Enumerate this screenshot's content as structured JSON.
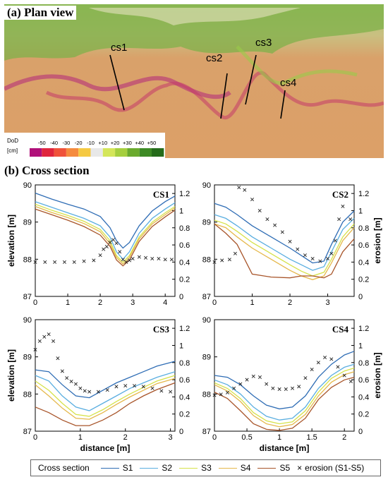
{
  "plan_view": {
    "title": "(a) Plan view",
    "section_labels": [
      "cs1",
      "cs2",
      "cs3",
      "cs4"
    ],
    "scale": {
      "label_top": "DoD",
      "label_unit": "[cm]",
      "ticks": [
        "-50",
        "-40",
        "-30",
        "-20",
        "-10",
        "+10",
        "+20",
        "+30",
        "+40",
        "+50"
      ],
      "colors": [
        "#b0107a",
        "#e0253d",
        "#f0523a",
        "#f58b3e",
        "#f5c942",
        "#e8e8e8",
        "#d4e65a",
        "#a5cf3e",
        "#6aaa2e",
        "#3d8a24",
        "#256b1a"
      ]
    }
  },
  "cross_section_title": "(b) Cross section",
  "legend": {
    "title": "Cross section",
    "items": [
      {
        "label": "S1",
        "color": "#2f6db5"
      },
      {
        "label": "S2",
        "color": "#5aaee0"
      },
      {
        "label": "S3",
        "color": "#d6e24a"
      },
      {
        "label": "S4",
        "color": "#e5b84b"
      },
      {
        "label": "S5",
        "color": "#a8552a"
      }
    ],
    "erosion_label": "erosion (S1-S5)"
  },
  "chart_data": [
    {
      "type": "line",
      "title": "CS1",
      "xlabel": "",
      "ylabel": "elevation [m]",
      "y2label": "",
      "xlim": [
        0,
        4.3
      ],
      "ylim": [
        87,
        90
      ],
      "y2lim": [
        0,
        1.3
      ],
      "xticks": [
        "0",
        "1",
        "2",
        "3",
        "4"
      ],
      "yticks": [
        "87",
        "88",
        "89",
        "90"
      ],
      "y2ticks": [
        "0",
        "0.2",
        "0.4",
        "0.6",
        "0.8",
        "1",
        "1.2"
      ],
      "x": [
        0,
        0.5,
        1,
        1.5,
        2,
        2.3,
        2.5,
        2.7,
        2.9,
        3.2,
        3.6,
        4.0,
        4.3
      ],
      "series": [
        {
          "name": "S1",
          "values": [
            89.78,
            89.62,
            89.48,
            89.35,
            89.15,
            88.85,
            88.5,
            88.3,
            88.45,
            88.9,
            89.3,
            89.55,
            89.7
          ]
        },
        {
          "name": "S2",
          "values": [
            89.55,
            89.4,
            89.25,
            89.1,
            88.9,
            88.6,
            88.2,
            88.0,
            88.2,
            88.7,
            89.1,
            89.35,
            89.52
          ]
        },
        {
          "name": "S3",
          "values": [
            89.48,
            89.32,
            89.18,
            89.02,
            88.8,
            88.5,
            88.1,
            87.92,
            88.1,
            88.6,
            89.0,
            89.25,
            89.42
          ]
        },
        {
          "name": "S4",
          "values": [
            89.42,
            89.26,
            89.12,
            88.96,
            88.74,
            88.42,
            88.05,
            87.87,
            88.05,
            88.55,
            88.95,
            89.2,
            89.38
          ]
        },
        {
          "name": "S5",
          "values": [
            89.35,
            89.2,
            89.05,
            88.88,
            88.65,
            88.35,
            87.98,
            87.82,
            87.98,
            88.48,
            88.88,
            89.14,
            89.32
          ]
        }
      ],
      "erosion": {
        "x": [
          0,
          0.3,
          0.6,
          0.9,
          1.2,
          1.5,
          1.8,
          2.0,
          2.1,
          2.2,
          2.3,
          2.4,
          2.5,
          2.6,
          2.7,
          2.8,
          2.9,
          3.0,
          3.2,
          3.4,
          3.6,
          3.8,
          4.0,
          4.2
        ],
        "values": [
          0.4,
          0.4,
          0.4,
          0.4,
          0.4,
          0.41,
          0.42,
          0.48,
          0.55,
          0.58,
          0.63,
          0.66,
          0.62,
          0.52,
          0.43,
          0.4,
          0.42,
          0.44,
          0.46,
          0.45,
          0.44,
          0.44,
          0.43,
          0.43
        ]
      }
    },
    {
      "type": "line",
      "title": "CS2",
      "xlabel": "",
      "ylabel": "",
      "y2label": "erosion [m]",
      "xlim": [
        0,
        3.7
      ],
      "ylim": [
        87,
        90
      ],
      "y2lim": [
        0,
        1.3
      ],
      "xticks": [
        "0",
        "1",
        "2",
        "3"
      ],
      "yticks": [
        "87",
        "88",
        "89",
        "90"
      ],
      "y2ticks": [
        "0",
        "0.2",
        "0.4",
        "0.6",
        "0.8",
        "1",
        "1.2"
      ],
      "x": [
        0,
        0.3,
        0.6,
        1.0,
        1.5,
        2.0,
        2.3,
        2.6,
        2.9,
        3.1,
        3.4,
        3.7
      ],
      "series": [
        {
          "name": "S1",
          "values": [
            89.5,
            89.4,
            89.2,
            88.9,
            88.6,
            88.3,
            88.1,
            87.9,
            87.95,
            88.4,
            89.0,
            89.3
          ]
        },
        {
          "name": "S2",
          "values": [
            89.2,
            89.1,
            88.9,
            88.6,
            88.3,
            88.0,
            87.85,
            87.7,
            87.8,
            88.2,
            88.8,
            89.1
          ]
        },
        {
          "name": "S3",
          "values": [
            89.05,
            88.95,
            88.75,
            88.45,
            88.15,
            87.85,
            87.68,
            87.55,
            87.65,
            88.0,
            88.6,
            88.95
          ]
        },
        {
          "name": "S4",
          "values": [
            88.95,
            88.85,
            88.6,
            88.3,
            88.0,
            87.7,
            87.55,
            87.45,
            87.55,
            87.9,
            88.5,
            88.85
          ]
        },
        {
          "name": "S5",
          "values": [
            88.95,
            88.7,
            88.4,
            87.6,
            87.52,
            87.5,
            87.55,
            87.55,
            87.5,
            87.6,
            88.2,
            88.55
          ]
        }
      ],
      "erosion": {
        "x": [
          0,
          0.2,
          0.4,
          0.55,
          0.65,
          0.8,
          1.0,
          1.2,
          1.4,
          1.6,
          1.8,
          2.0,
          2.2,
          2.4,
          2.6,
          2.8,
          3.0,
          3.1,
          3.2,
          3.3,
          3.4,
          3.6
        ],
        "values": [
          0.4,
          0.42,
          0.43,
          0.5,
          1.27,
          1.24,
          1.13,
          1.0,
          0.9,
          0.83,
          0.75,
          0.64,
          0.55,
          0.48,
          0.44,
          0.41,
          0.44,
          0.5,
          0.65,
          0.9,
          1.05,
          0.9
        ]
      }
    },
    {
      "type": "line",
      "title": "CS3",
      "xlabel": "distance [m]",
      "ylabel": "elevation [m]",
      "y2label": "",
      "xlim": [
        0,
        3.1
      ],
      "ylim": [
        87,
        90
      ],
      "y2lim": [
        0,
        1.3
      ],
      "xticks": [
        "0",
        "1",
        "2",
        "3"
      ],
      "yticks": [
        "87",
        "88",
        "89",
        "90"
      ],
      "y2ticks": [
        "0",
        "0.2",
        "0.4",
        "0.6",
        "0.8",
        "1",
        "1.2"
      ],
      "x": [
        0,
        0.3,
        0.6,
        0.9,
        1.2,
        1.5,
        1.8,
        2.1,
        2.4,
        2.7,
        3.1
      ],
      "series": [
        {
          "name": "S1",
          "values": [
            88.65,
            88.6,
            88.25,
            87.95,
            87.9,
            88.1,
            88.3,
            88.45,
            88.6,
            88.75,
            88.88
          ]
        },
        {
          "name": "S2",
          "values": [
            88.5,
            88.35,
            87.95,
            87.65,
            87.55,
            87.75,
            87.95,
            88.15,
            88.3,
            88.45,
            88.6
          ]
        },
        {
          "name": "S3",
          "values": [
            88.35,
            88.1,
            87.75,
            87.45,
            87.4,
            87.58,
            87.8,
            88.0,
            88.18,
            88.35,
            88.5
          ]
        },
        {
          "name": "S4",
          "values": [
            88.25,
            87.95,
            87.62,
            87.35,
            87.32,
            87.5,
            87.72,
            87.92,
            88.1,
            88.28,
            88.42
          ]
        },
        {
          "name": "S5",
          "values": [
            87.65,
            87.5,
            87.3,
            87.15,
            87.15,
            87.3,
            87.5,
            87.75,
            87.95,
            88.12,
            88.3
          ]
        }
      ],
      "erosion": {
        "x": [
          0,
          0.1,
          0.2,
          0.3,
          0.4,
          0.5,
          0.6,
          0.7,
          0.8,
          0.9,
          1.0,
          1.1,
          1.2,
          1.4,
          1.6,
          1.8,
          2.0,
          2.2,
          2.4,
          2.6,
          2.8,
          3.0
        ],
        "values": [
          0.95,
          1.05,
          1.1,
          1.13,
          1.05,
          0.85,
          0.7,
          0.62,
          0.58,
          0.55,
          0.5,
          0.47,
          0.46,
          0.46,
          0.48,
          0.52,
          0.53,
          0.53,
          0.52,
          0.5,
          0.47,
          0.46
        ]
      }
    },
    {
      "type": "line",
      "title": "CS4",
      "xlabel": "distance [m]",
      "ylabel": "",
      "y2label": "erosion [m]",
      "xlim": [
        0,
        2.15
      ],
      "ylim": [
        87,
        90
      ],
      "y2lim": [
        0,
        1.3
      ],
      "xticks": [
        "0",
        "0.5",
        "1",
        "1.5",
        "2"
      ],
      "yticks": [
        "87",
        "88",
        "89",
        "90"
      ],
      "y2ticks": [
        "0",
        "0.2",
        "0.4",
        "0.6",
        "0.8",
        "1",
        "1.2"
      ],
      "x": [
        0,
        0.2,
        0.4,
        0.6,
        0.8,
        1.0,
        1.2,
        1.4,
        1.6,
        1.8,
        2.0,
        2.15
      ],
      "series": [
        {
          "name": "S1",
          "values": [
            88.5,
            88.45,
            88.25,
            87.95,
            87.7,
            87.6,
            87.65,
            87.95,
            88.45,
            88.8,
            89.05,
            89.15
          ]
        },
        {
          "name": "S2",
          "values": [
            88.38,
            88.25,
            88.0,
            87.65,
            87.4,
            87.3,
            87.35,
            87.65,
            88.15,
            88.5,
            88.72,
            88.8
          ]
        },
        {
          "name": "S3",
          "values": [
            88.3,
            88.15,
            87.88,
            87.5,
            87.28,
            87.2,
            87.25,
            87.55,
            88.05,
            88.42,
            88.62,
            88.7
          ]
        },
        {
          "name": "S4",
          "values": [
            88.25,
            88.08,
            87.8,
            87.42,
            87.2,
            87.12,
            87.18,
            87.45,
            87.95,
            88.32,
            88.52,
            88.6
          ]
        },
        {
          "name": "S5",
          "values": [
            88.05,
            87.88,
            87.55,
            87.2,
            87.05,
            87.02,
            87.08,
            87.35,
            87.85,
            88.18,
            88.38,
            88.45
          ]
        }
      ],
      "erosion": {
        "x": [
          0,
          0.1,
          0.2,
          0.3,
          0.4,
          0.5,
          0.6,
          0.7,
          0.8,
          0.9,
          1.0,
          1.1,
          1.2,
          1.3,
          1.4,
          1.5,
          1.6,
          1.7,
          1.8,
          1.9,
          2.0,
          2.1
        ],
        "values": [
          0.42,
          0.43,
          0.45,
          0.5,
          0.55,
          0.6,
          0.64,
          0.63,
          0.55,
          0.5,
          0.49,
          0.49,
          0.5,
          0.52,
          0.62,
          0.72,
          0.8,
          0.86,
          0.84,
          0.75,
          0.65,
          0.58
        ]
      }
    }
  ]
}
